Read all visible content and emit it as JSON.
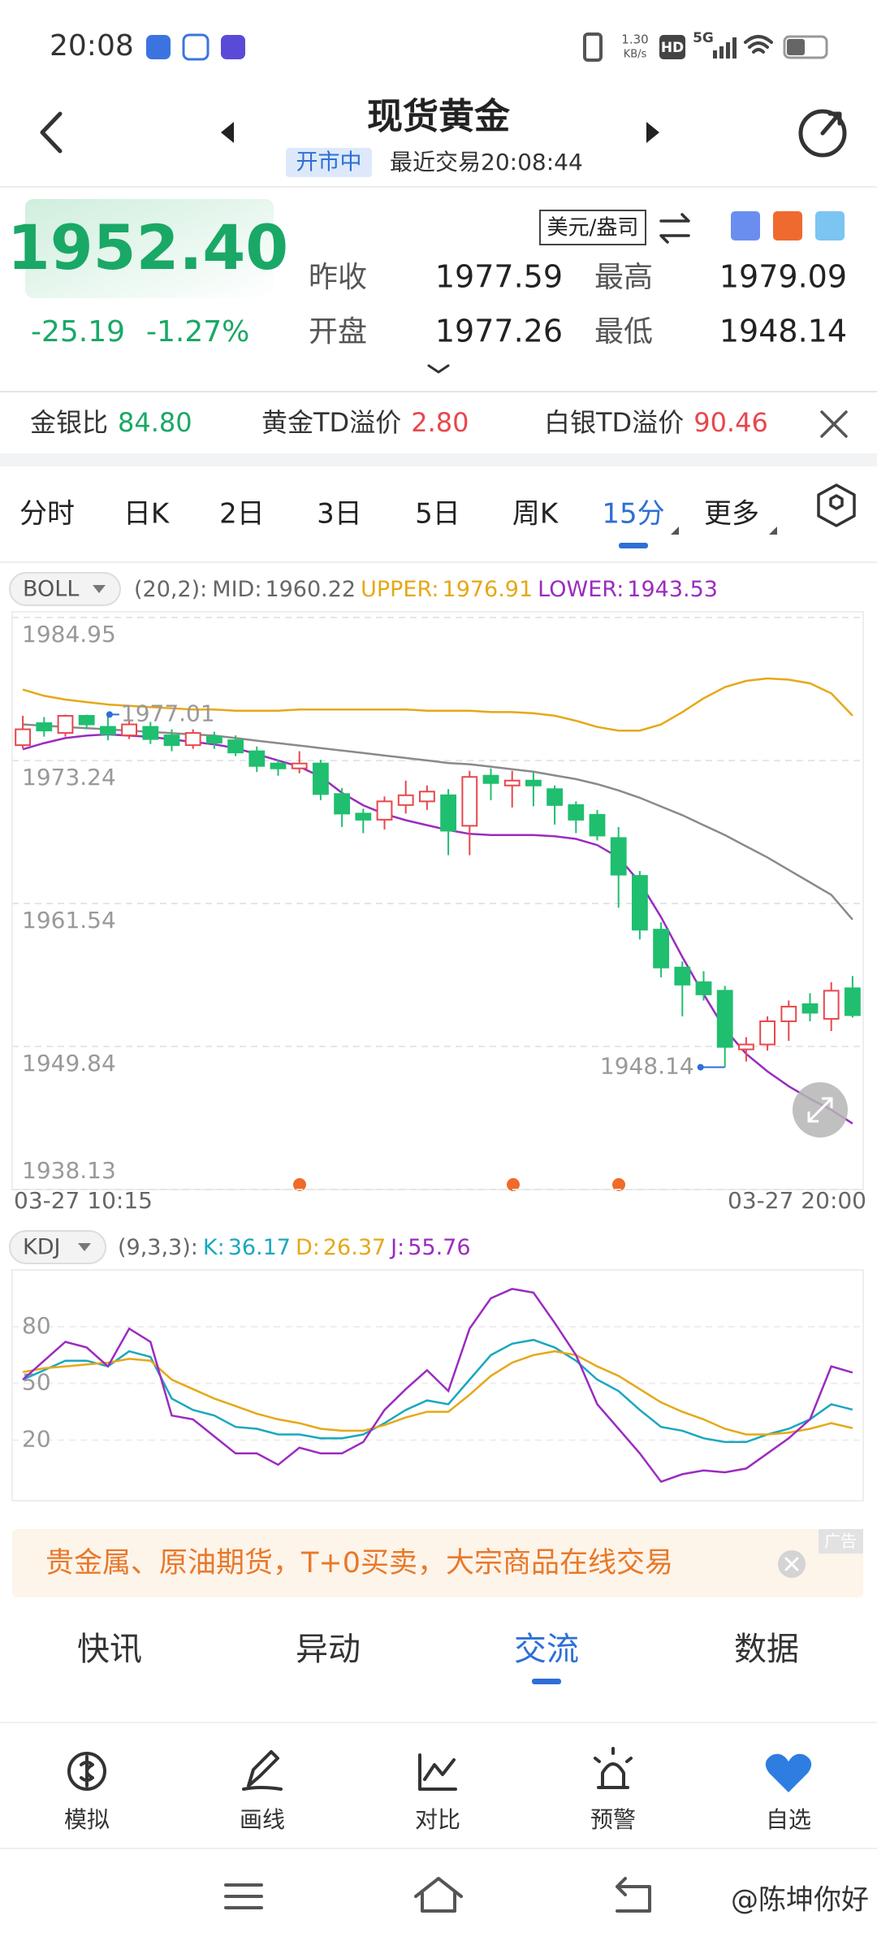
{
  "status_bar": {
    "time": "20:08",
    "net_speed": "1.30",
    "net_unit": "KB/s",
    "hd": "HD",
    "network": "5G"
  },
  "header": {
    "title": "现货黄金",
    "status": "开市中",
    "last_trade": "最近交易20:08:44"
  },
  "quote": {
    "price": "1952.40",
    "change": "-25.19",
    "change_pct": "-1.27%",
    "unit": "美元/盎司",
    "fields": [
      {
        "label": "昨收",
        "value": "1977.59"
      },
      {
        "label": "最高",
        "value": "1979.09"
      },
      {
        "label": "开盘",
        "value": "1977.26"
      },
      {
        "label": "最低",
        "value": "1948.14"
      }
    ]
  },
  "spreads": [
    {
      "label": "金银比",
      "value": "84.80",
      "color": "#1aa866"
    },
    {
      "label": "黄金TD溢价",
      "value": "2.80",
      "color": "#e8474c"
    },
    {
      "label": "白银TD溢价",
      "value": "90.46",
      "color": "#e8474c"
    }
  ],
  "period_tabs": {
    "items": [
      "分时",
      "日K",
      "2日",
      "3日",
      "5日",
      "周K",
      "15分",
      "更多"
    ],
    "active": 6
  },
  "chart_data": [
    {
      "type": "candlestick",
      "indicator": "BOLL",
      "params": "(20,2):",
      "open": [
        1974.5,
        1976.3,
        1975.5,
        1976.9,
        1976.0,
        1975.3,
        1976.0,
        1975.3,
        1974.5,
        1975.2,
        1974.9,
        1974.0,
        1973.0,
        1972.6,
        1973.0,
        1970.5,
        1968.9,
        1968.4,
        1969.6,
        1969.9,
        1970.4,
        1967.9,
        1972.0,
        1971.2,
        1971.6,
        1970.9,
        1969.6,
        1968.8,
        1966.9,
        1963.8,
        1959.4,
        1956.3,
        1955.1,
        1954.4,
        1949.6,
        1950.0,
        1951.9,
        1953.3,
        1952.1,
        1954.6
      ],
      "high": [
        1976.9,
        1976.8,
        1977.0,
        1977.0,
        1977.01,
        1976.6,
        1976.4,
        1975.8,
        1975.8,
        1975.6,
        1975.3,
        1974.4,
        1973.3,
        1974.0,
        1973.3,
        1971.0,
        1969.3,
        1970.3,
        1971.6,
        1971.2,
        1970.9,
        1972.4,
        1972.6,
        1972.4,
        1972.3,
        1971.2,
        1969.9,
        1969.2,
        1967.8,
        1964.2,
        1960.0,
        1956.8,
        1956.0,
        1954.8,
        1950.6,
        1952.3,
        1953.6,
        1954.2,
        1955.1,
        1955.6
      ],
      "low": [
        1974.2,
        1975.2,
        1975.2,
        1975.8,
        1974.9,
        1975.0,
        1974.6,
        1974.0,
        1974.2,
        1974.2,
        1973.6,
        1972.3,
        1972.0,
        1972.2,
        1970.0,
        1967.8,
        1967.3,
        1967.6,
        1968.9,
        1969.2,
        1965.5,
        1965.5,
        1970.0,
        1969.4,
        1969.5,
        1968.0,
        1967.3,
        1966.7,
        1961.2,
        1958.6,
        1955.5,
        1952.3,
        1953.6,
        1948.14,
        1948.6,
        1949.5,
        1950.3,
        1951.9,
        1951.1,
        1952.2
      ],
      "close": [
        1975.8,
        1975.7,
        1976.9,
        1976.2,
        1975.4,
        1976.2,
        1975.0,
        1974.5,
        1975.5,
        1974.7,
        1973.9,
        1972.8,
        1972.6,
        1973.0,
        1970.5,
        1968.9,
        1968.4,
        1969.9,
        1970.4,
        1970.7,
        1967.5,
        1971.9,
        1971.4,
        1971.6,
        1971.2,
        1969.6,
        1968.4,
        1967.1,
        1963.9,
        1959.4,
        1956.3,
        1954.9,
        1954.1,
        1949.8,
        1950.0,
        1951.9,
        1953.1,
        1952.6,
        1954.4,
        1952.4
      ],
      "up_color": "#e8474c",
      "down_color": "#1fbf6f",
      "ylim": [
        1938.13,
        1984.95
      ],
      "yticks": [
        1984.95,
        1973.24,
        1961.54,
        1949.84,
        1938.13
      ],
      "grid": true,
      "x_labels": [
        "03-27 10:15",
        "03-27 20:00"
      ],
      "series": [
        {
          "name": "MID:",
          "color": "#8a8a8a",
          "values": [
            1976.2,
            1976.1,
            1975.99,
            1975.89,
            1975.79,
            1975.69,
            1975.59,
            1975.48,
            1975.38,
            1975.28,
            1975.08,
            1974.87,
            1974.67,
            1974.47,
            1974.26,
            1974.06,
            1973.86,
            1973.65,
            1973.45,
            1973.25,
            1973.04,
            1972.94,
            1972.74,
            1972.53,
            1972.33,
            1972.02,
            1971.72,
            1971.31,
            1970.8,
            1970.19,
            1969.48,
            1968.77,
            1967.95,
            1967.14,
            1966.22,
            1965.31,
            1964.29,
            1963.27,
            1962.25,
            1960.22
          ]
        },
        {
          "name": "UPPER:",
          "color": "#e6a817",
          "values": [
            1979.05,
            1978.54,
            1978.23,
            1978.03,
            1977.83,
            1977.72,
            1977.62,
            1977.52,
            1977.42,
            1977.42,
            1977.32,
            1977.32,
            1977.32,
            1977.42,
            1977.42,
            1977.42,
            1977.42,
            1977.42,
            1977.42,
            1977.32,
            1977.32,
            1977.32,
            1977.21,
            1977.21,
            1977.11,
            1976.91,
            1976.5,
            1975.99,
            1975.69,
            1975.69,
            1976.2,
            1977.21,
            1978.33,
            1979.25,
            1979.76,
            1979.96,
            1979.86,
            1979.56,
            1978.74,
            1976.91
          ]
        },
        {
          "name": "LOWER:",
          "color": "#9b2bc0",
          "values": [
            1974.16,
            1974.67,
            1975.08,
            1975.28,
            1975.38,
            1975.28,
            1975.18,
            1974.97,
            1974.77,
            1974.57,
            1974.26,
            1973.76,
            1973.25,
            1972.74,
            1971.92,
            1970.6,
            1969.58,
            1968.87,
            1968.36,
            1967.95,
            1967.55,
            1967.24,
            1967.14,
            1967.14,
            1967.14,
            1967.04,
            1966.83,
            1966.32,
            1965.31,
            1963.27,
            1960.42,
            1957.16,
            1954.11,
            1951.26,
            1949.23,
            1947.8,
            1946.58,
            1945.56,
            1944.65,
            1943.53
          ]
        }
      ]
    },
    {
      "type": "line",
      "indicator": "KDJ",
      "params": "(9,3,3):",
      "ylim": [
        -12,
        110
      ],
      "yticks": [
        80,
        50,
        20
      ],
      "series": [
        {
          "name": "K:",
          "color": "#1aa7c0",
          "values": [
            52,
            57,
            62,
            62,
            59,
            67,
            64,
            42,
            36,
            33,
            27,
            26,
            23,
            23,
            21,
            21,
            23,
            29,
            36,
            41,
            39,
            52,
            65,
            71,
            73,
            69,
            62,
            52,
            46,
            36,
            27,
            25,
            21,
            19,
            19,
            23,
            26,
            31,
            39,
            36.17
          ]
        },
        {
          "name": "D:",
          "color": "#e6a817",
          "values": [
            56,
            58,
            59,
            60,
            61,
            63,
            62,
            52,
            47,
            42,
            38,
            34,
            31,
            29,
            26,
            25,
            25,
            28,
            32,
            35,
            35,
            44,
            54,
            61,
            65,
            67,
            65,
            59,
            54,
            47,
            40,
            35,
            31,
            26,
            23,
            23,
            24,
            26,
            29,
            26.37
          ]
        },
        {
          "name": "J:",
          "color": "#9b2bc0",
          "values": [
            52,
            62,
            72,
            69,
            59,
            79,
            72,
            33,
            31,
            22,
            13,
            13,
            7,
            16,
            13,
            13,
            19,
            36,
            47,
            57,
            46,
            79,
            95,
            100,
            98,
            82,
            65,
            39,
            26,
            13,
            -2,
            2,
            4,
            3,
            5,
            13,
            21,
            31,
            59,
            55.76
          ]
        }
      ]
    }
  ],
  "ad": {
    "text": "贵金属、原油期货，T+0买卖，大宗商品在线交易",
    "tag": "广告"
  },
  "news_tabs": {
    "items": [
      "快讯",
      "异动",
      "交流",
      "数据"
    ],
    "active": 2
  },
  "toolbar": [
    "模拟",
    "画线",
    "对比",
    "预警",
    "自选"
  ],
  "watermark": "@陈坤你好"
}
